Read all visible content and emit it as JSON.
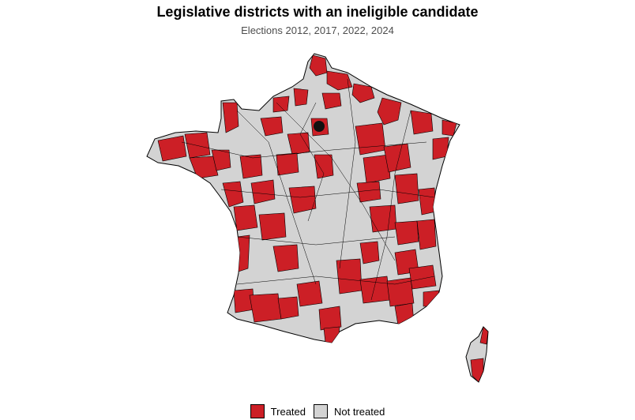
{
  "title": "Legislative districts with an ineligible candidate",
  "subtitle": "Elections 2012, 2017, 2022, 2024",
  "legend": [
    {
      "label": "Treated",
      "color": "#cc1f26"
    },
    {
      "label": "Not treated",
      "color": "#d3d3d3"
    }
  ],
  "colors": {
    "treated": "#cc1f26",
    "not_treated": "#d3d3d3",
    "border": "#000000"
  }
}
